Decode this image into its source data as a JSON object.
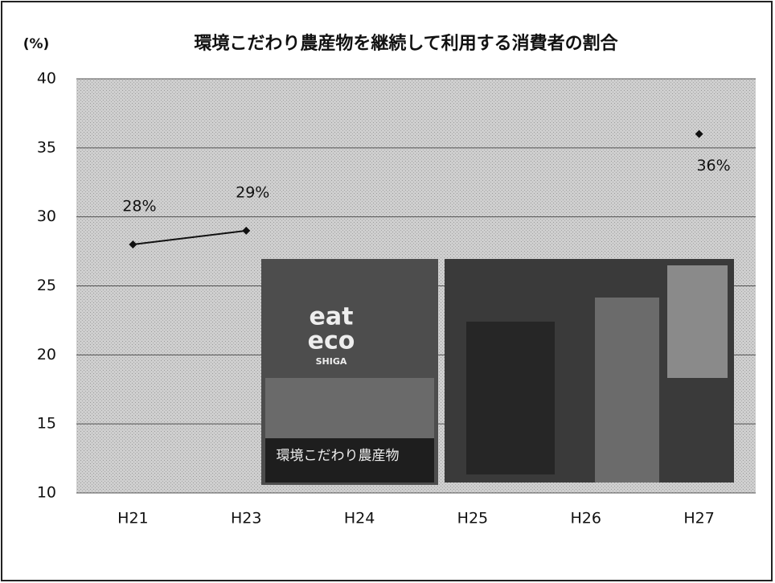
{
  "chart_data": {
    "type": "line",
    "title": "環境こだわり農産物を継続して利用する消費者の割合",
    "y_label": "(%)",
    "categories": [
      "H21",
      "H23",
      "H24",
      "H25",
      "H26",
      "H27"
    ],
    "values": [
      28,
      29,
      null,
      null,
      null,
      36
    ],
    "value_labels": [
      "28%",
      "29%",
      null,
      null,
      null,
      "36%"
    ],
    "color": "#111111",
    "ylim": [
      10,
      40
    ],
    "yticks": [
      10,
      15,
      20,
      25,
      30,
      35,
      40
    ],
    "grid": true,
    "annotations": [
      "eat",
      "eco",
      "SHIGA",
      "環境こだわり農産物"
    ]
  }
}
